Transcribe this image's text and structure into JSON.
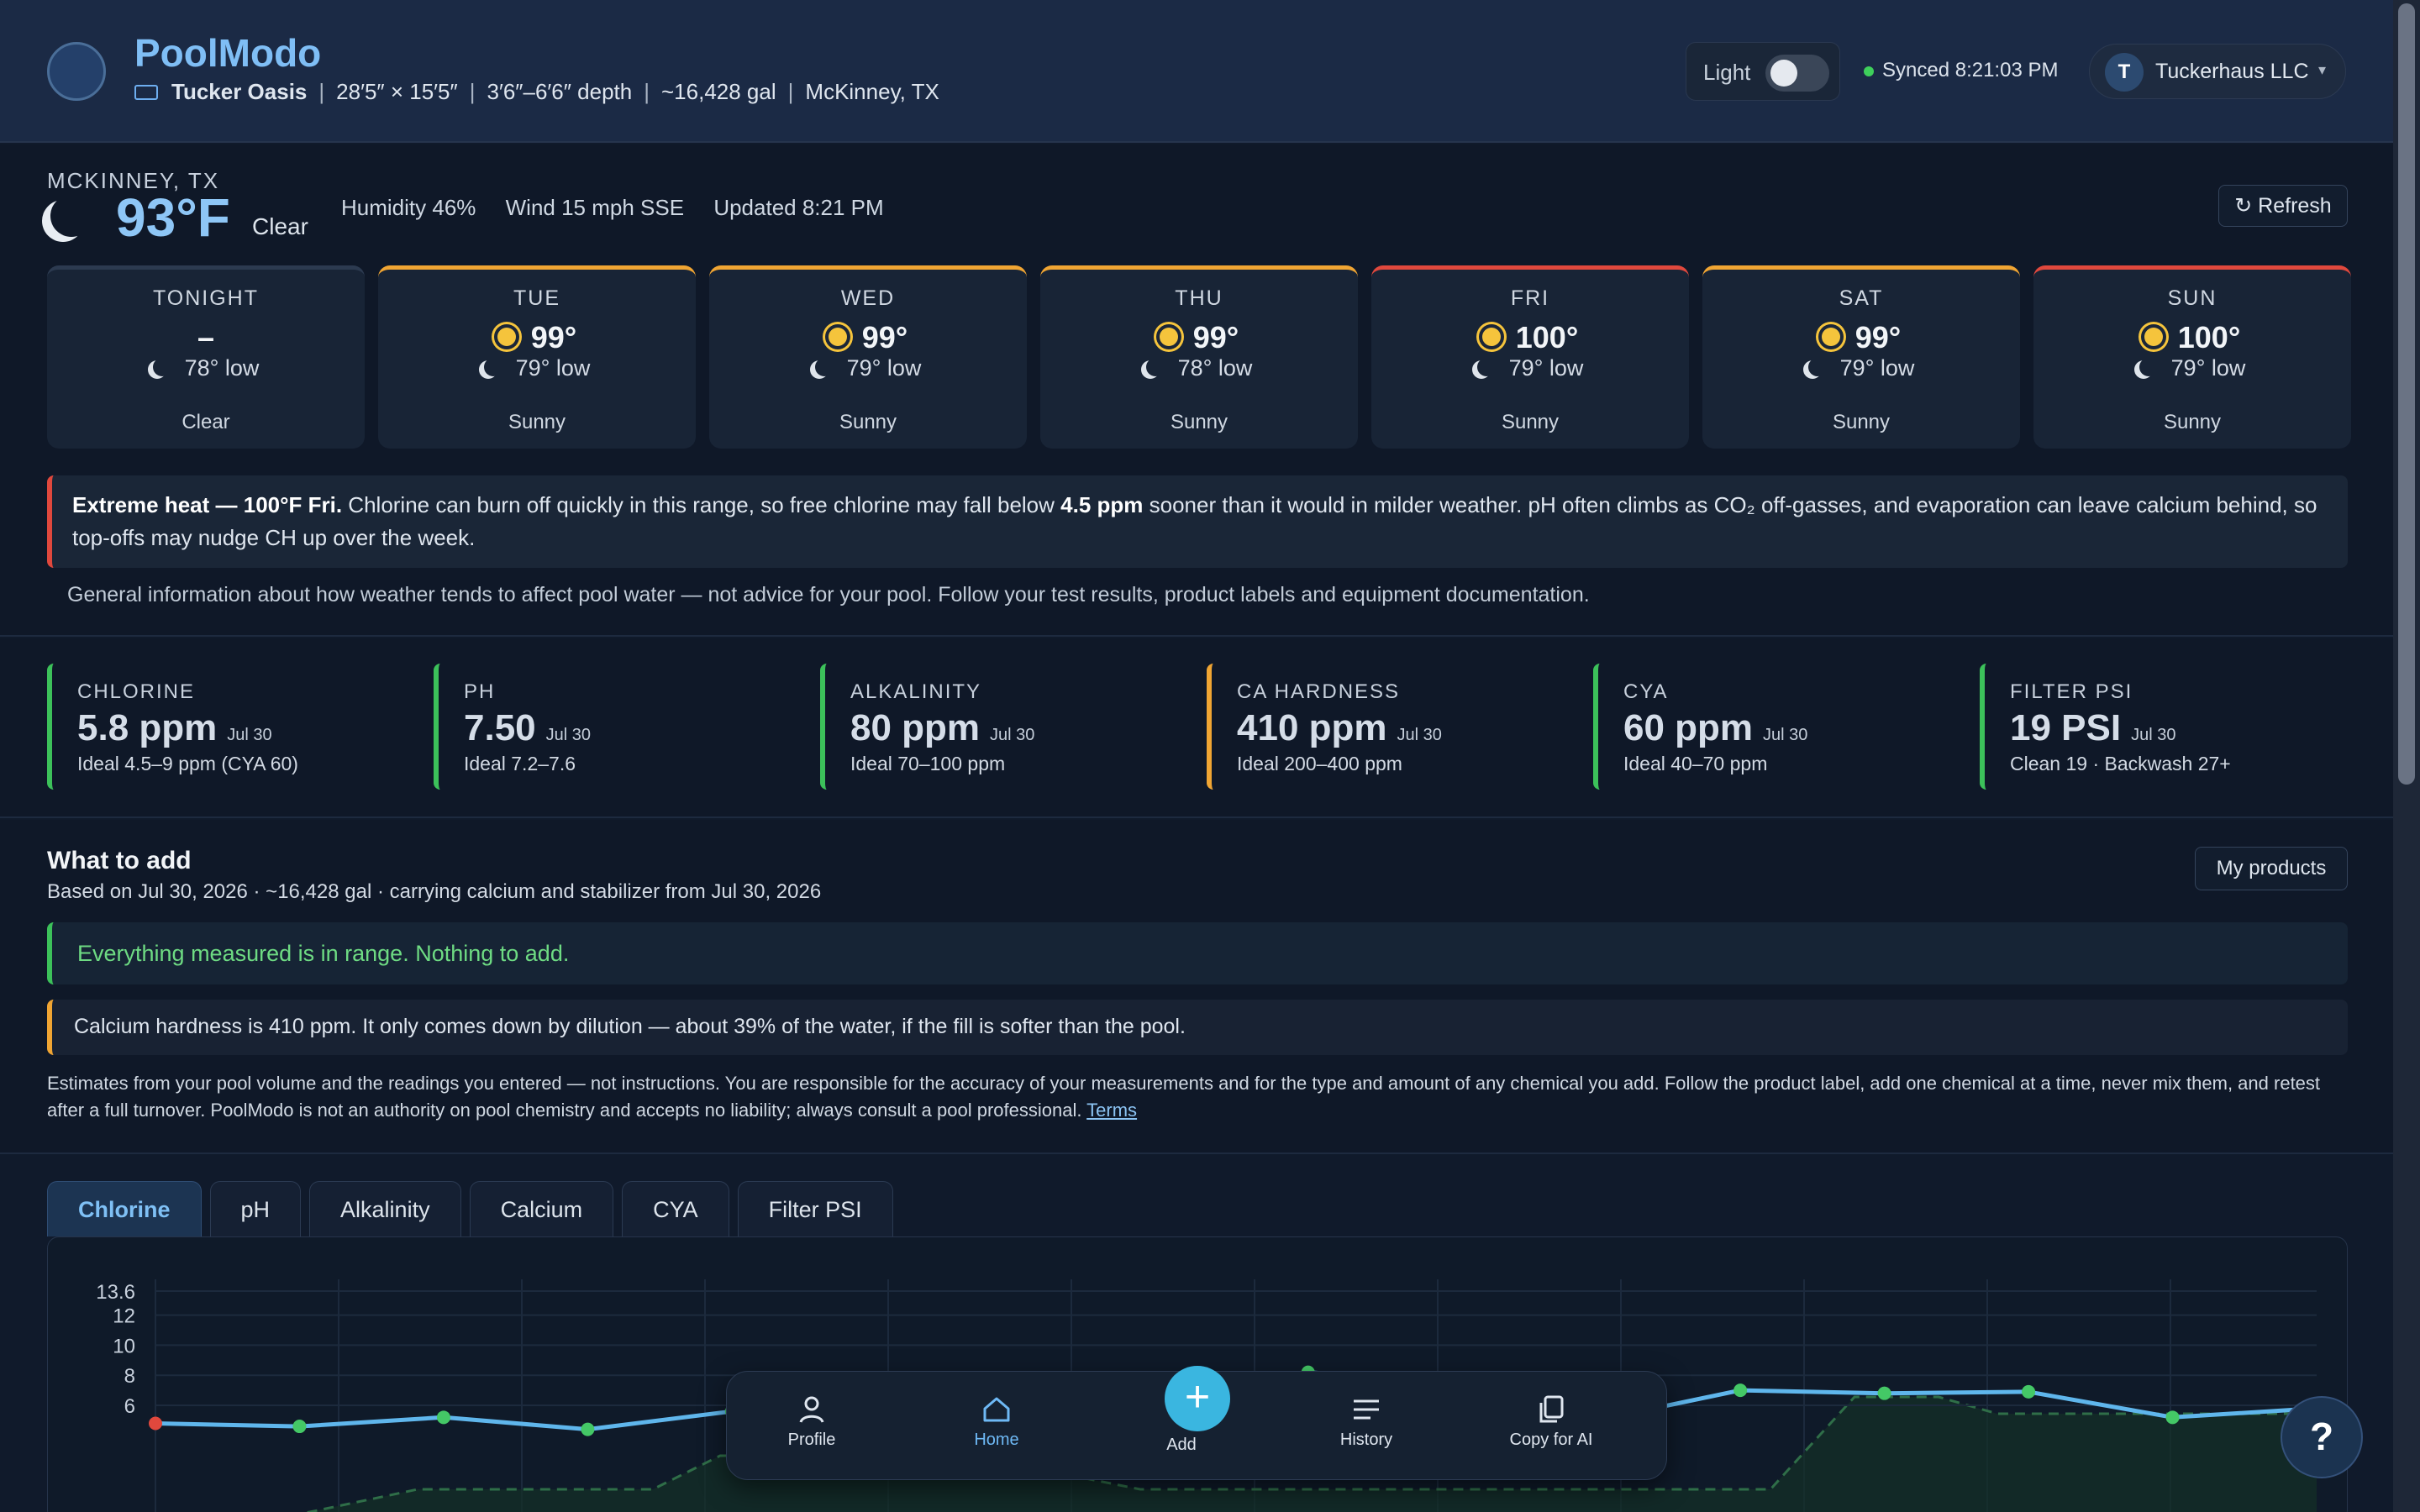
{
  "header": {
    "brand": "PoolModo",
    "pool_name": "Tucker Oasis",
    "size": "28′5″ × 15′5″",
    "depth": "3′6″–6′6″ depth",
    "volume": "~16,428 gal",
    "location": "McKinney, TX",
    "theme_label": "Light",
    "sync_status": "Synced 8:21:03 PM",
    "account_initial": "T",
    "account_name": "Tuckerhaus LLC",
    "account_caret": "▾"
  },
  "weather": {
    "city": "MCKINNEY, TX",
    "temp": "93°F",
    "condition": "Clear",
    "humidity": "Humidity 46%",
    "wind": "Wind 15 mph SSE",
    "updated": "Updated 8:21 PM",
    "refresh_label": "↻ Refresh",
    "days": [
      {
        "name": "TONIGHT",
        "high": "–",
        "low": "78° low",
        "desc": "Clear"
      },
      {
        "name": "TUE",
        "high": "99°",
        "low": "79° low",
        "desc": "Sunny"
      },
      {
        "name": "WED",
        "high": "99°",
        "low": "79° low",
        "desc": "Sunny"
      },
      {
        "name": "THU",
        "high": "99°",
        "low": "78° low",
        "desc": "Sunny"
      },
      {
        "name": "FRI",
        "high": "100°",
        "low": "79° low",
        "desc": "Sunny"
      },
      {
        "name": "SAT",
        "high": "99°",
        "low": "79° low",
        "desc": "Sunny"
      },
      {
        "name": "SUN",
        "high": "100°",
        "low": "79° low",
        "desc": "Sunny"
      }
    ],
    "alert_title": "Extreme heat — 100°F Fri.",
    "alert_body_1": " Chlorine can burn off quickly in this range, so free chlorine may fall below ",
    "alert_bold": "4.5 ppm",
    "alert_body_2": " sooner than it would in milder weather. pH often climbs as CO₂ off-gasses, and evaporation can leave calcium behind, so top-offs may nudge CH up over the week.",
    "general_note": "General information about how weather tends to affect pool water — not advice for your pool. Follow your test results, product labels and equipment documentation."
  },
  "readings": [
    {
      "name": "CHLORINE",
      "value": "5.8 ppm",
      "date": "Jul 30",
      "ideal": "Ideal 4.5–9 ppm (CYA 60)",
      "status": "ok"
    },
    {
      "name": "PH",
      "value": "7.50",
      "date": "Jul 30",
      "ideal": "Ideal 7.2–7.6",
      "status": "ok"
    },
    {
      "name": "ALKALINITY",
      "value": "80 ppm",
      "date": "Jul 30",
      "ideal": "Ideal 70–100 ppm",
      "status": "ok"
    },
    {
      "name": "CA HARDNESS",
      "value": "410 ppm",
      "date": "Jul 30",
      "ideal": "Ideal 200–400 ppm",
      "status": "warn"
    },
    {
      "name": "CYA",
      "value": "60 ppm",
      "date": "Jul 30",
      "ideal": "Ideal 40–70 ppm",
      "status": "ok"
    },
    {
      "name": "FILTER PSI",
      "value": "19 PSI",
      "date": "Jul 30",
      "ideal": "Clean 19 · Backwash 27+",
      "status": "ok"
    }
  ],
  "what_to_add": {
    "title": "What to add",
    "subtitle": "Based on Jul 30, 2026 · ~16,428 gal · carrying calcium and stabilizer from Jul 30, 2026",
    "my_products": "My products",
    "ok_message": "Everything measured is in range. Nothing to add.",
    "calcium_note": "Calcium hardness is 410 ppm. It only comes down by dilution — about 39% of the water, if the fill is softer than the pool.",
    "disclaimer": "Estimates from your pool volume and the readings you entered — not instructions. You are responsible for the accuracy of your measurements and for the type and amount of any chemical you add. Follow the product label, add one chemical at a time, never mix them, and retest after a full turnover. PoolModo is not an authority on pool chemistry and accepts no liability; always consult a pool professional.",
    "terms": "Terms"
  },
  "chart_tabs": [
    "Chlorine",
    "pH",
    "Alkalinity",
    "Calcium",
    "CYA",
    "Filter PSI"
  ],
  "chart_data": {
    "type": "line",
    "title": "",
    "xlabel": "",
    "ylabel": "",
    "ylim": [
      4.5,
      13.6
    ],
    "yticks": [
      "13.6",
      "12",
      "10",
      "8",
      "6"
    ],
    "series": [
      {
        "values": [
          4.8,
          4.6,
          5.2,
          4.4,
          5.6,
          5.8,
          5.5,
          6.7,
          8.2,
          7.5,
          5.0,
          7.0,
          6.8,
          6.9,
          5.2,
          5.8
        ]
      }
    ]
  },
  "nav": {
    "profile": "Profile",
    "home": "Home",
    "add": "Add",
    "history": "History",
    "copy": "Copy for AI",
    "fab": "+",
    "help": "?"
  },
  "colors": {
    "accent": "#7fbef5",
    "ok": "#3cc15a",
    "warn": "#f0a533",
    "hot": "#e0483d"
  }
}
